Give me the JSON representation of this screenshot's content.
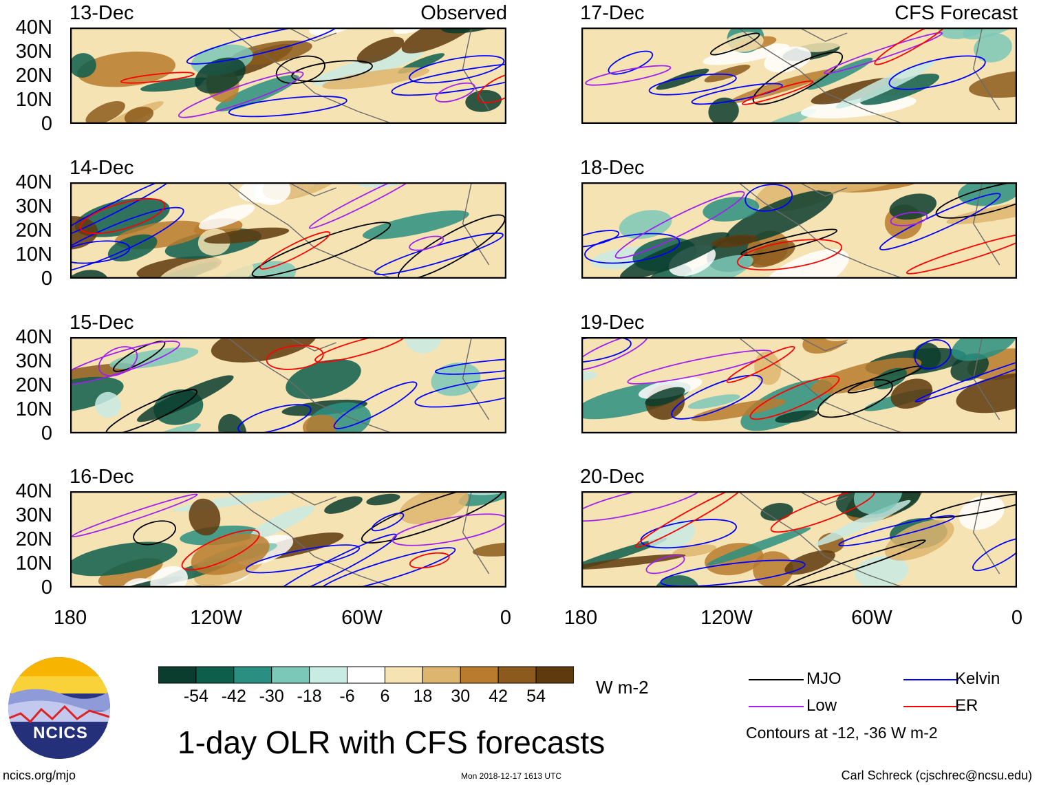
{
  "panels": {
    "left_label": "Observed",
    "right_label": "CFS Forecast",
    "left_dates": [
      "13-Dec",
      "14-Dec",
      "15-Dec",
      "16-Dec"
    ],
    "right_dates": [
      "17-Dec",
      "18-Dec",
      "19-Dec",
      "20-Dec"
    ]
  },
  "axes": {
    "lat_labels": [
      "40N",
      "30N",
      "20N",
      "10N",
      "0"
    ],
    "lon_labels": [
      "180",
      "120W",
      "60W",
      "0"
    ]
  },
  "colorbar": {
    "colors": [
      "#0b3d2e",
      "#0e5e4c",
      "#2a8f80",
      "#7cc8b8",
      "#c8ebe3",
      "#ffffff",
      "#f5e3b3",
      "#deb56e",
      "#b97b2e",
      "#8c5a1c",
      "#5e3a0e"
    ],
    "ticks": [
      "-54",
      "-42",
      "-30",
      "-18",
      "-6",
      "6",
      "18",
      "30",
      "42",
      "54"
    ],
    "units": "W m-2"
  },
  "title": "1-day OLR with CFS forecasts",
  "legend": {
    "items": [
      {
        "label": "MJO",
        "color": "#000000"
      },
      {
        "label": "Kelvin",
        "color": "#0000ff"
      },
      {
        "label": "Low",
        "color": "#a020f0"
      },
      {
        "label": "ER",
        "color": "#ff0000"
      }
    ],
    "note": "Contours at -12, -36 W m-2"
  },
  "logo": {
    "text": "NCICS"
  },
  "footer": {
    "left": "ncics.org/mjo",
    "middle": "Mon 2018-12-17 1613 UTC",
    "right": "Carl Schreck (cjschrec@ncsu.edu)"
  }
}
